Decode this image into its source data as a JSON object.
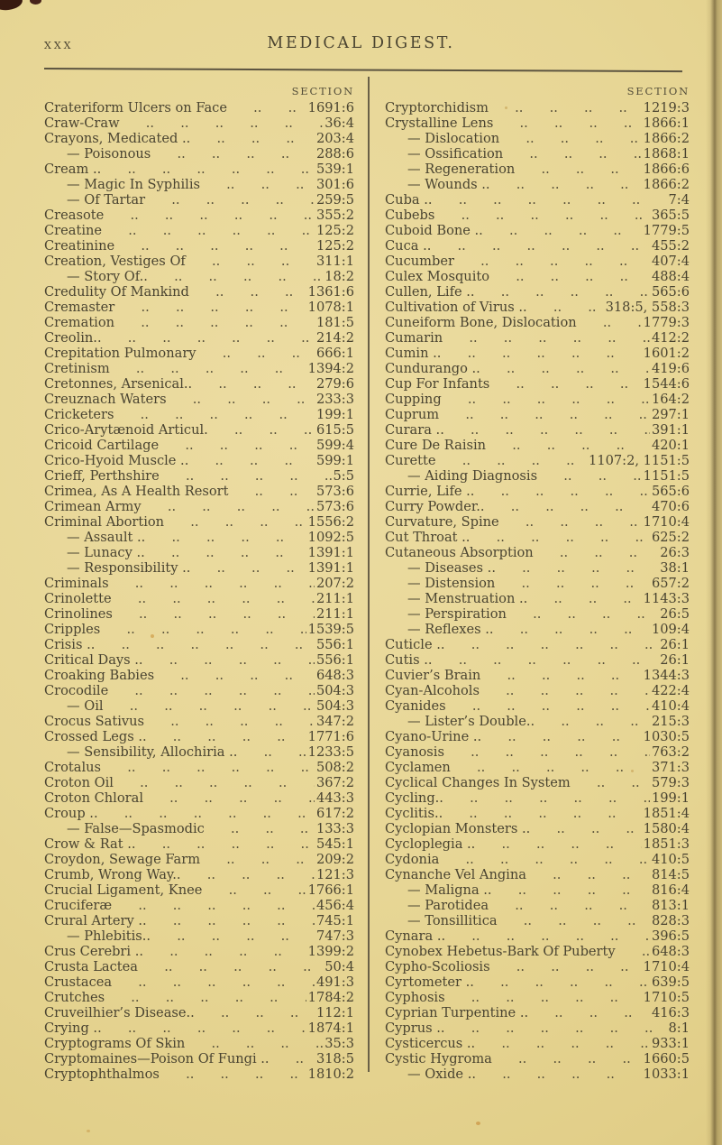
{
  "header": {
    "page_number": "xxx",
    "title": "MEDICAL DIGEST."
  },
  "colors": {
    "paper": "#e6d594",
    "ink": "#4a4431"
  },
  "index": {
    "section_heading": "SECTION",
    "left": [
      {
        "label": "Crateriform Ulcers on Face",
        "section": "1691:6"
      },
      {
        "label": "Craw-Craw",
        "section": "36:4"
      },
      {
        "label": "Crayons, Medicated ..",
        "section": "203:4"
      },
      {
        "label": "— Poisonous",
        "section": "288:6"
      },
      {
        "label": "Cream ..",
        "section": "539:1"
      },
      {
        "label": "— Magic In Syphilis",
        "section": "301:6"
      },
      {
        "label": "— Of Tartar",
        "section": "259:5"
      },
      {
        "label": "Creasote",
        "section": "355:2"
      },
      {
        "label": "Creatine",
        "section": "125:2"
      },
      {
        "label": "Creatinine",
        "section": "125:2"
      },
      {
        "label": "Creation, Vestiges Of",
        "section": "311:1"
      },
      {
        "label": "— Story Of..",
        "section": "18:2"
      },
      {
        "label": "Credulity Of Mankind",
        "section": "1361:6"
      },
      {
        "label": "Cremaster",
        "section": "1078:1"
      },
      {
        "label": "Cremation",
        "section": "181:5"
      },
      {
        "label": "Creolin..",
        "section": "214:2"
      },
      {
        "label": "Crepitation Pulmonary",
        "section": "666:1"
      },
      {
        "label": "Cretinism",
        "section": "1394:2"
      },
      {
        "label": "Cretonnes, Arsenical..",
        "section": "279:6"
      },
      {
        "label": "Creuznach Waters",
        "section": "233:3"
      },
      {
        "label": "Cricketers",
        "section": "199:1"
      },
      {
        "label": "Crico-Arytænoid Articul.",
        "section": "615:5"
      },
      {
        "label": "Cricoid Cartilage",
        "section": "599:4"
      },
      {
        "label": "Crico-Hyoid Muscle ..",
        "section": "599:1"
      },
      {
        "label": "Crieff, Perthshire",
        "section": "5:5"
      },
      {
        "label": "Crimea, As A Health Resort",
        "section": "573:6"
      },
      {
        "label": "Crimean Army",
        "section": "573:6"
      },
      {
        "label": "Criminal Abortion",
        "section": "1556:2"
      },
      {
        "label": "— Assault ..",
        "section": "1092:5"
      },
      {
        "label": "— Lunacy ..",
        "section": "1391:1"
      },
      {
        "label": "— Responsibility ..",
        "section": "1391:1"
      },
      {
        "label": "Criminals",
        "section": "207:2"
      },
      {
        "label": "Crinolette",
        "section": "211:1"
      },
      {
        "label": "Crinolines",
        "section": "211:1"
      },
      {
        "label": "Cripples",
        "section": "1539:5"
      },
      {
        "label": "Crisis ..",
        "section": "556:1"
      },
      {
        "label": "Critical Days ..",
        "section": "556:1"
      },
      {
        "label": "Croaking Babies",
        "section": "648:3"
      },
      {
        "label": "Crocodile",
        "section": "504:3"
      },
      {
        "label": "— Oil",
        "section": "504:3"
      },
      {
        "label": "Crocus Sativus",
        "section": "347:2"
      },
      {
        "label": "Crossed Legs ..",
        "section": "1771:6"
      },
      {
        "label": "— Sensibility, Allochiria ..",
        "section": "1233:5"
      },
      {
        "label": "Crotalus",
        "section": "508:2"
      },
      {
        "label": "Croton Oil",
        "section": "367:2"
      },
      {
        "label": "Croton Chloral",
        "section": "443:3"
      },
      {
        "label": "Croup ..",
        "section": "617:2"
      },
      {
        "label": "— False—Spasmodic",
        "section": "133:3"
      },
      {
        "label": "Crow & Rat ..",
        "section": "545:1"
      },
      {
        "label": "Croydon, Sewage Farm",
        "section": "209:2"
      },
      {
        "label": "Crumb, Wrong Way..",
        "section": "121:3"
      },
      {
        "label": "Crucial Ligament, Knee",
        "section": "1766:1"
      },
      {
        "label": "Cruciferæ",
        "section": "456:4"
      },
      {
        "label": "Crural Artery ..",
        "section": "745:1"
      },
      {
        "label": "— Phlebitis..",
        "section": "747:3"
      },
      {
        "label": "Crus Cerebri ..",
        "section": "1399:2"
      },
      {
        "label": "Crusta Lactea",
        "section": "50:4"
      },
      {
        "label": "Crustacea",
        "section": "491:3"
      },
      {
        "label": "Crutches",
        "section": "1784:2"
      },
      {
        "label": "Cruveilhier’s Disease..",
        "section": "112:1"
      },
      {
        "label": "Crying ..",
        "section": "1874:1"
      },
      {
        "label": "Cryptograms Of Skin",
        "section": "35:3"
      },
      {
        "label": "Cryptomaines—Poison Of Fungi ..",
        "section": "318:5"
      },
      {
        "label": "Cryptophthalmos",
        "section": "1810:2"
      }
    ],
    "right": [
      {
        "label": "Cryptorchidism",
        "section": "1219:3"
      },
      {
        "label": "Crystalline Lens",
        "section": "1866:1"
      },
      {
        "label": "— Dislocation",
        "section": "1866:2"
      },
      {
        "label": "— Ossification",
        "section": "1868:1"
      },
      {
        "label": "— Regeneration",
        "section": "1866:6"
      },
      {
        "label": "— Wounds ..",
        "section": "1866:2"
      },
      {
        "label": "Cuba ..",
        "section": "7:4"
      },
      {
        "label": "Cubebs",
        "section": "365:5"
      },
      {
        "label": "Cuboid Bone ..",
        "section": "1779:5"
      },
      {
        "label": "Cuca ..",
        "section": "455:2"
      },
      {
        "label": "Cucumber",
        "section": "407:4"
      },
      {
        "label": "Culex Mosquito",
        "section": "488:4"
      },
      {
        "label": "Cullen, Life ..",
        "section": "565:6"
      },
      {
        "label": "Cultivation of Virus ..",
        "section": "318:5, 558:3"
      },
      {
        "label": "Cuneiform Bone, Dislocation",
        "section": "1779:3"
      },
      {
        "label": "Cumarin",
        "section": "412:2"
      },
      {
        "label": "Cumin ..",
        "section": "1601:2"
      },
      {
        "label": "Cundurango ..",
        "section": "419:6"
      },
      {
        "label": "Cup For Infants",
        "section": "1544:6"
      },
      {
        "label": "Cupping",
        "section": "164:2"
      },
      {
        "label": "Cuprum",
        "section": "297:1"
      },
      {
        "label": "Curara ..",
        "section": "391:1"
      },
      {
        "label": "Cure De Raisin",
        "section": "420:1"
      },
      {
        "label": "Curette",
        "section": "1107:2, 1151:5"
      },
      {
        "label": "— Aiding Diagnosis",
        "section": "1151:5"
      },
      {
        "label": "Currie, Life ..",
        "section": "565:6"
      },
      {
        "label": "Curry Powder..",
        "section": "470:6"
      },
      {
        "label": "Curvature, Spine",
        "section": "1710:4"
      },
      {
        "label": "Cut Throat ..",
        "section": "625:2"
      },
      {
        "label": "Cutaneous Absorption",
        "section": "26:3"
      },
      {
        "label": "— Diseases ..",
        "section": "38:1"
      },
      {
        "label": "— Distension",
        "section": "657:2"
      },
      {
        "label": "— Menstruation ..",
        "section": "1143:3"
      },
      {
        "label": "— Perspiration",
        "section": "26:5"
      },
      {
        "label": "— Reflexes ..",
        "section": "109:4"
      },
      {
        "label": "Cuticle ..",
        "section": "26:1"
      },
      {
        "label": "Cutis ..",
        "section": "26:1"
      },
      {
        "label": "Cuvier’s Brain",
        "section": "1344:3"
      },
      {
        "label": "Cyan-Alcohols",
        "section": "422:4"
      },
      {
        "label": "Cyanides",
        "section": "410:4"
      },
      {
        "label": "— Lister’s Double..",
        "section": "215:3"
      },
      {
        "label": "Cyano-Urine ..",
        "section": "1030:5"
      },
      {
        "label": "Cyanosis",
        "section": "763:2"
      },
      {
        "label": "Cyclamen",
        "section": "371:3"
      },
      {
        "label": "Cyclical Changes In System",
        "section": "579:3"
      },
      {
        "label": "Cycling..",
        "section": "199:1"
      },
      {
        "label": "Cyclitis..",
        "section": "1851:4"
      },
      {
        "label": "Cyclopian Monsters ..",
        "section": "1580:4"
      },
      {
        "label": "Cycloplegia ..",
        "section": "1851:3"
      },
      {
        "label": "Cydonia",
        "section": "410:5"
      },
      {
        "label": "Cynanche Vel Angina",
        "section": "814:5"
      },
      {
        "label": "— Maligna ..",
        "section": "816:4"
      },
      {
        "label": "— Parotidea",
        "section": "813:1"
      },
      {
        "label": "— Tonsillitica",
        "section": "828:3"
      },
      {
        "label": "Cynara ..",
        "section": "396:5"
      },
      {
        "label": "Cynobex Hebetus-Bark Of Puberty",
        "section": "648:3"
      },
      {
        "label": "Cypho-Scoliosis",
        "section": "1710:4"
      },
      {
        "label": "Cyrtometer ..",
        "section": "639:5"
      },
      {
        "label": "Cyphosis",
        "section": "1710:5"
      },
      {
        "label": "Cyprian Turpentine ..",
        "section": "416:3"
      },
      {
        "label": "Cyprus ..",
        "section": "8:1"
      },
      {
        "label": "Cysticercus ..",
        "section": "933:1"
      },
      {
        "label": "Cystic Hygroma",
        "section": "1660:5"
      },
      {
        "label": "— Oxide ..",
        "section": "1033:1"
      }
    ]
  }
}
